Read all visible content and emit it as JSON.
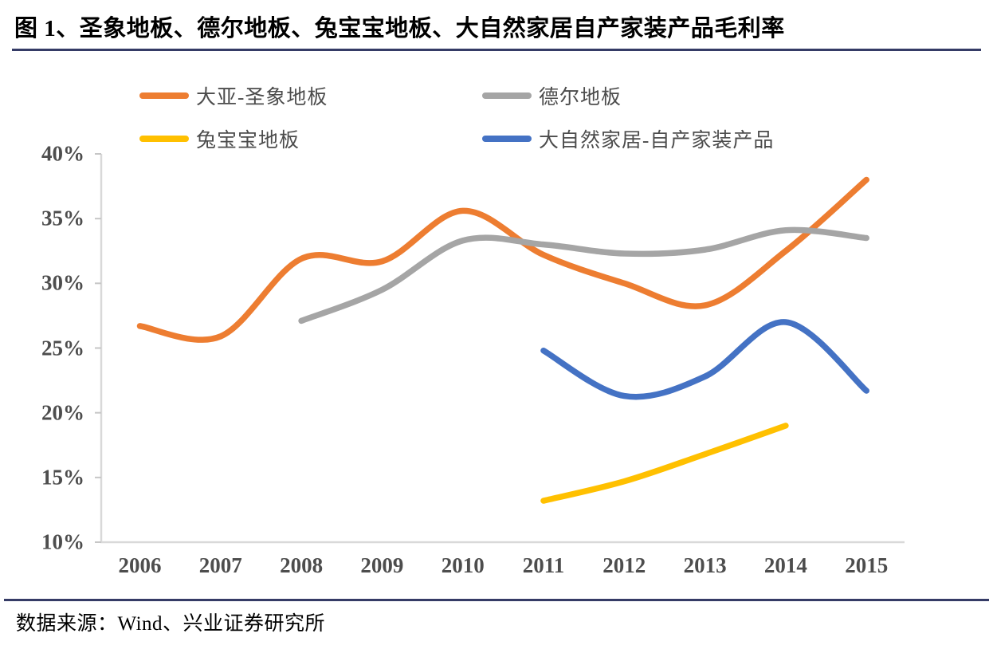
{
  "page": {
    "title": "图 1、圣象地板、德尔地板、兔宝宝地板、大自然家居自产家装产品毛利率",
    "source_label": "数据来源：Wind、兴业证券研究所",
    "rule_color": "#353b66",
    "background_color": "#ffffff",
    "axis_color": "#d9d9d9",
    "tick_label_color": "#4d4d4d"
  },
  "chart_data": {
    "type": "line",
    "title": "图 1、圣象地板、德尔地板、兔宝宝地板、大自然家居自产家装产品毛利率",
    "xlabel": "",
    "ylabel": "",
    "ylim": [
      10,
      40
    ],
    "y_unit": "%",
    "grid": false,
    "smoothed_lines": true,
    "legend_position": "top",
    "y_ticks": [
      "40%",
      "35%",
      "30%",
      "25%",
      "20%",
      "15%",
      "10%"
    ],
    "categories": [
      "2006",
      "2007",
      "2008",
      "2009",
      "2010",
      "2011",
      "2012",
      "2013",
      "2014",
      "2015"
    ],
    "series": [
      {
        "name": "大亚-圣象地板",
        "color": "#ED7D31",
        "values": [
          26.7,
          25.9,
          31.9,
          31.7,
          35.6,
          32.2,
          30.0,
          28.3,
          32.5,
          38.0
        ]
      },
      {
        "name": "德尔地板",
        "color": "#A5A5A5",
        "values": [
          null,
          null,
          27.1,
          29.5,
          33.3,
          33.0,
          32.3,
          32.6,
          34.1,
          33.5
        ]
      },
      {
        "name": "兔宝宝地板",
        "color": "#FFC000",
        "values": [
          null,
          null,
          null,
          null,
          null,
          13.2,
          14.7,
          16.8,
          19.0,
          null
        ]
      },
      {
        "name": "大自然家居-自产家装产品",
        "color": "#4472C4",
        "values": [
          null,
          null,
          null,
          null,
          null,
          24.8,
          21.3,
          22.8,
          27.0,
          21.7
        ]
      }
    ]
  }
}
